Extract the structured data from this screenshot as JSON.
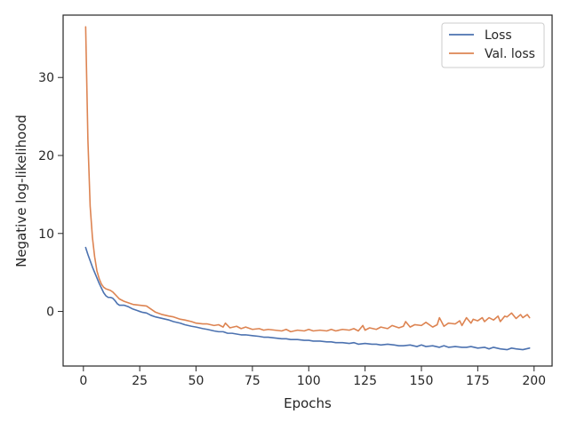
{
  "chart_data": {
    "type": "line",
    "title": "",
    "xlabel": "Epochs",
    "ylabel": "Negative log-likelihood",
    "xlim": [
      -9,
      208
    ],
    "ylim": [
      -7,
      38
    ],
    "xticks": [
      0,
      25,
      50,
      75,
      100,
      125,
      150,
      175,
      200
    ],
    "yticks": [
      0,
      10,
      20,
      30
    ],
    "grid": false,
    "legend_position": "top-right",
    "series": [
      {
        "name": "Loss",
        "color": "#4c72b0",
        "x": [
          1,
          2,
          3,
          4,
          5,
          6,
          7,
          8,
          9,
          10,
          11,
          12,
          13,
          14,
          15,
          16,
          17,
          18,
          19,
          20,
          22,
          24,
          25,
          26,
          28,
          30,
          32,
          35,
          38,
          40,
          43,
          45,
          48,
          50,
          53,
          55,
          58,
          60,
          62,
          64,
          66,
          68,
          70,
          72,
          75,
          78,
          80,
          82,
          85,
          88,
          90,
          92,
          95,
          98,
          100,
          102,
          105,
          108,
          110,
          112,
          115,
          118,
          120,
          122,
          125,
          128,
          130,
          132,
          135,
          138,
          140,
          142,
          145,
          148,
          150,
          152,
          155,
          158,
          160,
          162,
          165,
          168,
          170,
          172,
          175,
          178,
          180,
          182,
          185,
          188,
          190,
          192,
          195,
          198
        ],
        "y": [
          8.2,
          7.3,
          6.5,
          5.7,
          5.0,
          4.3,
          3.6,
          3.0,
          2.4,
          2.0,
          1.8,
          1.8,
          1.7,
          1.4,
          1.0,
          0.8,
          0.8,
          0.8,
          0.7,
          0.6,
          0.3,
          0.1,
          0.0,
          -0.1,
          -0.2,
          -0.5,
          -0.7,
          -0.9,
          -1.1,
          -1.3,
          -1.5,
          -1.7,
          -1.9,
          -2.0,
          -2.2,
          -2.3,
          -2.5,
          -2.6,
          -2.6,
          -2.8,
          -2.8,
          -2.9,
          -3.0,
          -3.0,
          -3.1,
          -3.2,
          -3.3,
          -3.3,
          -3.4,
          -3.5,
          -3.5,
          -3.6,
          -3.6,
          -3.7,
          -3.7,
          -3.8,
          -3.8,
          -3.9,
          -3.9,
          -4.0,
          -4.0,
          -4.1,
          -4.0,
          -4.2,
          -4.1,
          -4.2,
          -4.2,
          -4.3,
          -4.2,
          -4.3,
          -4.4,
          -4.4,
          -4.3,
          -4.5,
          -4.3,
          -4.5,
          -4.4,
          -4.6,
          -4.4,
          -4.6,
          -4.5,
          -4.6,
          -4.6,
          -4.5,
          -4.7,
          -4.6,
          -4.8,
          -4.6,
          -4.8,
          -4.9,
          -4.7,
          -4.8,
          -4.9,
          -4.7
        ]
      },
      {
        "name": "Val. loss",
        "color": "#dd8452",
        "x": [
          1,
          2,
          3,
          4,
          5,
          6,
          7,
          8,
          9,
          10,
          11,
          12,
          13,
          14,
          15,
          16,
          18,
          20,
          22,
          25,
          28,
          30,
          32,
          35,
          38,
          40,
          43,
          45,
          48,
          50,
          53,
          55,
          58,
          60,
          62,
          63,
          65,
          68,
          70,
          72,
          75,
          78,
          80,
          82,
          85,
          88,
          90,
          92,
          95,
          98,
          100,
          102,
          105,
          108,
          110,
          112,
          115,
          118,
          120,
          122,
          124,
          125,
          127,
          130,
          132,
          135,
          137,
          140,
          142,
          143,
          145,
          147,
          150,
          152,
          155,
          157,
          158,
          160,
          162,
          165,
          167,
          168,
          170,
          172,
          173,
          175,
          177,
          178,
          180,
          182,
          184,
          185,
          187,
          188,
          190,
          192,
          194,
          195,
          197,
          198
        ],
        "y": [
          36.5,
          22.0,
          13.5,
          9.5,
          7.0,
          5.2,
          4.2,
          3.5,
          3.1,
          2.9,
          2.8,
          2.7,
          2.5,
          2.2,
          1.9,
          1.6,
          1.3,
          1.1,
          0.9,
          0.8,
          0.7,
          0.3,
          -0.1,
          -0.4,
          -0.6,
          -0.7,
          -1.0,
          -1.1,
          -1.3,
          -1.5,
          -1.6,
          -1.6,
          -1.8,
          -1.7,
          -2.0,
          -1.5,
          -2.1,
          -1.9,
          -2.2,
          -2.0,
          -2.3,
          -2.2,
          -2.4,
          -2.3,
          -2.4,
          -2.5,
          -2.3,
          -2.6,
          -2.4,
          -2.5,
          -2.3,
          -2.5,
          -2.4,
          -2.5,
          -2.3,
          -2.5,
          -2.3,
          -2.4,
          -2.2,
          -2.5,
          -1.8,
          -2.4,
          -2.1,
          -2.3,
          -2.0,
          -2.2,
          -1.8,
          -2.1,
          -1.9,
          -1.3,
          -2.0,
          -1.7,
          -1.8,
          -1.4,
          -2.0,
          -1.7,
          -0.8,
          -1.9,
          -1.5,
          -1.6,
          -1.2,
          -1.8,
          -0.8,
          -1.5,
          -1.0,
          -1.2,
          -0.8,
          -1.3,
          -0.8,
          -1.1,
          -0.6,
          -1.3,
          -0.6,
          -0.7,
          -0.2,
          -0.9,
          -0.4,
          -0.8,
          -0.4,
          -0.8
        ]
      }
    ]
  }
}
